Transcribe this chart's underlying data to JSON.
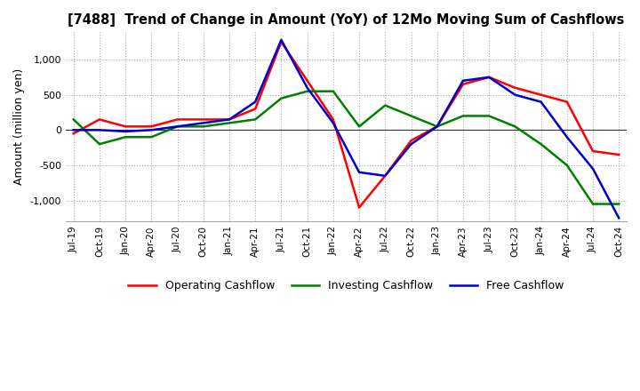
{
  "title": "[7488]  Trend of Change in Amount (YoY) of 12Mo Moving Sum of Cashflows",
  "ylabel": "Amount (million yen)",
  "ylim": [
    -1300,
    1400
  ],
  "yticks": [
    -1000,
    -500,
    0,
    500,
    1000
  ],
  "background_color": "#ffffff",
  "grid_color": "#aaaaaa",
  "x_labels": [
    "Jul-19",
    "Oct-19",
    "Jan-20",
    "Apr-20",
    "Jul-20",
    "Oct-20",
    "Jan-21",
    "Apr-21",
    "Jul-21",
    "Oct-21",
    "Jan-22",
    "Apr-22",
    "Jul-22",
    "Oct-22",
    "Jan-23",
    "Apr-23",
    "Jul-23",
    "Oct-23",
    "Jan-24",
    "Apr-24",
    "Jul-24",
    "Oct-24"
  ],
  "operating": [
    -50,
    150,
    50,
    50,
    150,
    150,
    150,
    300,
    1250,
    700,
    150,
    -1100,
    -650,
    -150,
    50,
    650,
    750,
    600,
    500,
    400,
    -300,
    -350
  ],
  "investing": [
    150,
    -200,
    -100,
    -100,
    50,
    50,
    100,
    150,
    450,
    550,
    550,
    50,
    350,
    200,
    50,
    200,
    200,
    50,
    -200,
    -500,
    -1050,
    -1050
  ],
  "free": [
    0,
    0,
    -20,
    0,
    50,
    100,
    150,
    400,
    1280,
    600,
    100,
    -600,
    -650,
    -200,
    50,
    700,
    750,
    500,
    400,
    -100,
    -550,
    -1250
  ],
  "operating_color": "#ff0000",
  "investing_color": "#008000",
  "free_color": "#0000cc",
  "line_width": 1.8
}
